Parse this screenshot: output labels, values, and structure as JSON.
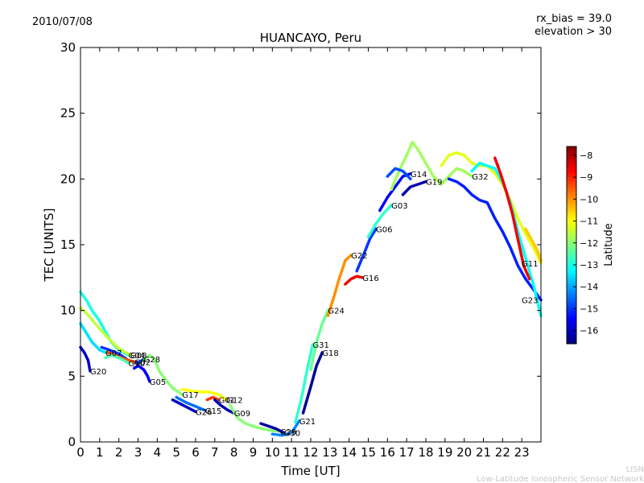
{
  "header": {
    "date": "2010/07/08",
    "rx_bias": "rx_bias = 39.0",
    "elevation": "elevation > 30"
  },
  "footer": {
    "line1": "LISN",
    "line2": "Low-Latitude Ionospheric Sensor Network"
  },
  "colors": {
    "colormap": [
      "#00007f",
      "#0000ff",
      "#007fff",
      "#00ffff",
      "#7fff7f",
      "#ffff00",
      "#ff7f00",
      "#ff0000",
      "#7f0000"
    ],
    "note": ""
  },
  "chart_data": {
    "type": "line",
    "title": "HUANCAYO, Peru",
    "xlabel": "Time [UT]",
    "ylabel": "TEC [UNITS]",
    "xlim": [
      0,
      24
    ],
    "ylim": [
      0,
      30
    ],
    "xticks": [
      0,
      1,
      2,
      3,
      4,
      5,
      6,
      7,
      8,
      9,
      10,
      11,
      12,
      13,
      14,
      15,
      16,
      17,
      18,
      19,
      20,
      21,
      22,
      23
    ],
    "yticks": [
      0,
      5,
      10,
      15,
      20,
      25,
      30
    ],
    "colorbar": {
      "label": "Latitude",
      "range": [
        -16.6,
        -7.6
      ],
      "ticks": [
        -8,
        -9,
        -10,
        -11,
        -12,
        -13,
        -14,
        -15,
        -16
      ]
    },
    "series": [
      {
        "name": "G04",
        "lat": -13,
        "points": [
          [
            0,
            11.4
          ],
          [
            0.3,
            10.8
          ],
          [
            0.6,
            10
          ],
          [
            1,
            9.2
          ],
          [
            1.3,
            8.4
          ],
          [
            1.6,
            7.6
          ],
          [
            2,
            7
          ],
          [
            2.5,
            6.6
          ]
        ]
      },
      {
        "name": "G08",
        "lat": -11.5,
        "points": [
          [
            0,
            10.2
          ],
          [
            0.3,
            9.8
          ],
          [
            0.6,
            9.3
          ],
          [
            1,
            8.6
          ],
          [
            1.5,
            7.8
          ],
          [
            2,
            7.1
          ],
          [
            2.6,
            6.6
          ]
        ]
      },
      {
        "name": "G07",
        "lat": -13.5,
        "points": [
          [
            0,
            9
          ],
          [
            0.3,
            8.3
          ],
          [
            0.6,
            7.6
          ],
          [
            1,
            7
          ],
          [
            1.3,
            6.8
          ]
        ]
      },
      {
        "name": "G20",
        "lat": -16,
        "points": [
          [
            0,
            7.2
          ],
          [
            0.2,
            6.8
          ],
          [
            0.4,
            6.2
          ],
          [
            0.5,
            5.4
          ]
        ]
      },
      {
        "name": "G28",
        "lat": -15,
        "points": [
          [
            1.1,
            7.2
          ],
          [
            1.5,
            7
          ],
          [
            2,
            6.7
          ],
          [
            2.5,
            6.2
          ],
          [
            3,
            6
          ],
          [
            3.3,
            6.3
          ]
        ]
      },
      {
        "name": "G02",
        "lat": -9.5,
        "points": [
          [
            1.4,
            6.8
          ],
          [
            1.8,
            6.6
          ],
          [
            2.3,
            6.3
          ],
          [
            2.8,
            6.1
          ]
        ]
      },
      {
        "name": "G10",
        "lat": -12.5,
        "points": [
          [
            1.3,
            6.4
          ],
          [
            1.6,
            6.6
          ],
          [
            2,
            6.4
          ],
          [
            2.5,
            6
          ]
        ]
      },
      {
        "name": "G05",
        "lat": -15.5,
        "points": [
          [
            2.8,
            5.6
          ],
          [
            3,
            5.8
          ],
          [
            3.3,
            5.5
          ],
          [
            3.5,
            5
          ],
          [
            3.6,
            4.6
          ]
        ]
      },
      {
        "name": "G17",
        "lat": -12,
        "points": [
          [
            3.3,
            6.2
          ],
          [
            3.6,
            6.6
          ],
          [
            3.9,
            6.2
          ],
          [
            4.1,
            5.4
          ],
          [
            4.4,
            4.8
          ],
          [
            4.8,
            4.1
          ],
          [
            5.3,
            3.6
          ]
        ]
      },
      {
        "name": "G12",
        "lat": -11,
        "points": [
          [
            5.3,
            4
          ],
          [
            5.7,
            3.9
          ],
          [
            6.2,
            3.8
          ],
          [
            6.7,
            3.8
          ],
          [
            7.2,
            3.6
          ],
          [
            7.6,
            3.2
          ]
        ]
      },
      {
        "name": "G26",
        "lat": -16,
        "points": [
          [
            4.8,
            3.2
          ],
          [
            5.2,
            2.9
          ],
          [
            5.6,
            2.6
          ],
          [
            6,
            2.3
          ]
        ]
      },
      {
        "name": "G15",
        "lat": -14.5,
        "points": [
          [
            5,
            3.4
          ],
          [
            5.5,
            3
          ],
          [
            6,
            2.7
          ],
          [
            6.5,
            2.4
          ]
        ]
      },
      {
        "name": "G01",
        "lat": -9.2,
        "points": [
          [
            6.6,
            3.2
          ],
          [
            6.9,
            3.4
          ],
          [
            7.2,
            3.2
          ]
        ]
      },
      {
        "name": "G09",
        "lat": -16.2,
        "points": [
          [
            7,
            3.2
          ],
          [
            7.3,
            2.8
          ],
          [
            7.7,
            2.4
          ],
          [
            8,
            2.2
          ]
        ]
      },
      {
        "name": "G29",
        "lat": -12,
        "points": [
          [
            7.8,
            2.8
          ],
          [
            8.2,
            1.8
          ],
          [
            8.6,
            1.4
          ],
          [
            9.2,
            1.1
          ],
          [
            9.8,
            0.9
          ],
          [
            10.4,
            0.8
          ]
        ]
      },
      {
        "name": "G30",
        "lat": -16.3,
        "points": [
          [
            9.4,
            1.4
          ],
          [
            9.8,
            1.2
          ],
          [
            10.2,
            1
          ],
          [
            10.6,
            0.7
          ]
        ]
      },
      {
        "name": "G21",
        "lat": -14.3,
        "points": [
          [
            10,
            0.6
          ],
          [
            10.5,
            0.5
          ],
          [
            11,
            0.7
          ],
          [
            11.4,
            1.6
          ]
        ]
      },
      {
        "name": "G31",
        "lat": -12.8,
        "points": [
          [
            11.2,
            1.5
          ],
          [
            11.5,
            3.2
          ],
          [
            11.8,
            5.4
          ],
          [
            12.1,
            7.4
          ]
        ]
      },
      {
        "name": "G18",
        "lat": -16.4,
        "points": [
          [
            11.6,
            2.2
          ],
          [
            12,
            4.2
          ],
          [
            12.3,
            5.8
          ],
          [
            12.6,
            6.8
          ]
        ]
      },
      {
        "name": "G24",
        "lat": -12.3,
        "points": [
          [
            12,
            5.5
          ],
          [
            12.3,
            7.6
          ],
          [
            12.6,
            9
          ],
          [
            12.9,
            10
          ]
        ]
      },
      {
        "name": "G22",
        "lat": -10,
        "points": [
          [
            12.9,
            9.6
          ],
          [
            13.2,
            11
          ],
          [
            13.5,
            12.5
          ],
          [
            13.8,
            13.8
          ],
          [
            14.1,
            14.2
          ]
        ]
      },
      {
        "name": "G16",
        "lat": -8.6,
        "points": [
          [
            13.8,
            12
          ],
          [
            14.1,
            12.4
          ],
          [
            14.4,
            12.6
          ],
          [
            14.7,
            12.5
          ]
        ]
      },
      {
        "name": "G06",
        "lat": -15,
        "points": [
          [
            14.4,
            13
          ],
          [
            14.8,
            14.4
          ],
          [
            15.1,
            15.5
          ],
          [
            15.4,
            16.2
          ]
        ]
      },
      {
        "name": "G03",
        "lat": -12.8,
        "points": [
          [
            15,
            15.6
          ],
          [
            15.4,
            16.6
          ],
          [
            15.8,
            17.4
          ],
          [
            16.2,
            18
          ]
        ]
      },
      {
        "name": "G14",
        "lat": -15.5,
        "points": [
          [
            15.6,
            17.6
          ],
          [
            16,
            18.6
          ],
          [
            16.4,
            19.4
          ],
          [
            16.8,
            20.2
          ],
          [
            17.2,
            20.4
          ]
        ]
      },
      {
        "name": "G32",
        "lat": -11.8,
        "points": [
          [
            16.2,
            19.2
          ],
          [
            16.6,
            20.6
          ],
          [
            17,
            21.8
          ],
          [
            17.3,
            22.8
          ],
          [
            17.6,
            22.2
          ],
          [
            18,
            21.2
          ],
          [
            18.4,
            20.2
          ],
          [
            18.8,
            19.6
          ],
          [
            19.2,
            20.2
          ],
          [
            19.6,
            20.8
          ],
          [
            20,
            20.6
          ],
          [
            20.4,
            20.2
          ]
        ]
      },
      {
        "name": "G19",
        "lat": -16.2,
        "points": [
          [
            16.8,
            18.8
          ],
          [
            17.2,
            19.4
          ],
          [
            17.6,
            19.6
          ],
          [
            18,
            19.8
          ]
        ]
      },
      {
        "name": "G23",
        "lat": -15.2,
        "points": [
          [
            19.2,
            20
          ],
          [
            19.6,
            19.8
          ],
          [
            20,
            19.4
          ],
          [
            20.4,
            18.8
          ],
          [
            20.8,
            18.4
          ],
          [
            21.2,
            18.2
          ],
          [
            21.6,
            17
          ],
          [
            22,
            16
          ],
          [
            22.4,
            14.8
          ],
          [
            22.8,
            13.4
          ],
          [
            23.2,
            12.4
          ],
          [
            23.6,
            11.6
          ],
          [
            24,
            10.8
          ]
        ]
      },
      {
        "name": "G11",
        "lat": -11.2,
        "points": [
          [
            18.8,
            21
          ],
          [
            19.2,
            21.8
          ],
          [
            19.6,
            22
          ],
          [
            20,
            21.8
          ],
          [
            20.4,
            21.2
          ],
          [
            20.8,
            21
          ],
          [
            21.2,
            21
          ],
          [
            21.6,
            20.4
          ],
          [
            22,
            19.6
          ],
          [
            22.4,
            18.4
          ],
          [
            22.8,
            17
          ],
          [
            23.2,
            15.8
          ],
          [
            23.6,
            14.8
          ],
          [
            24,
            13.6
          ]
        ]
      },
      {
        "name": "",
        "lat": -13.2,
        "points": [
          [
            20.4,
            20.6
          ],
          [
            20.8,
            21.2
          ],
          [
            21.2,
            21
          ],
          [
            21.6,
            20.8
          ],
          [
            22,
            19.8
          ],
          [
            22.4,
            18.2
          ],
          [
            22.8,
            16
          ],
          [
            23.2,
            14
          ],
          [
            23.6,
            12
          ],
          [
            24,
            9.6
          ]
        ]
      },
      {
        "name": "",
        "lat": -8.6,
        "points": [
          [
            21.6,
            21.6
          ],
          [
            21.9,
            20.4
          ],
          [
            22.2,
            19
          ],
          [
            22.5,
            17.4
          ],
          [
            22.8,
            15.4
          ],
          [
            23.1,
            13.4
          ],
          [
            23.4,
            12.4
          ]
        ]
      },
      {
        "name": "",
        "lat": -10.5,
        "points": [
          [
            23.2,
            16.2
          ],
          [
            23.5,
            15.4
          ],
          [
            23.8,
            14.6
          ],
          [
            24,
            13.8
          ]
        ]
      },
      {
        "name": "",
        "lat": -14.8,
        "points": [
          [
            16,
            20.2
          ],
          [
            16.4,
            20.8
          ],
          [
            16.8,
            20.6
          ],
          [
            17.2,
            20
          ]
        ]
      }
    ]
  }
}
